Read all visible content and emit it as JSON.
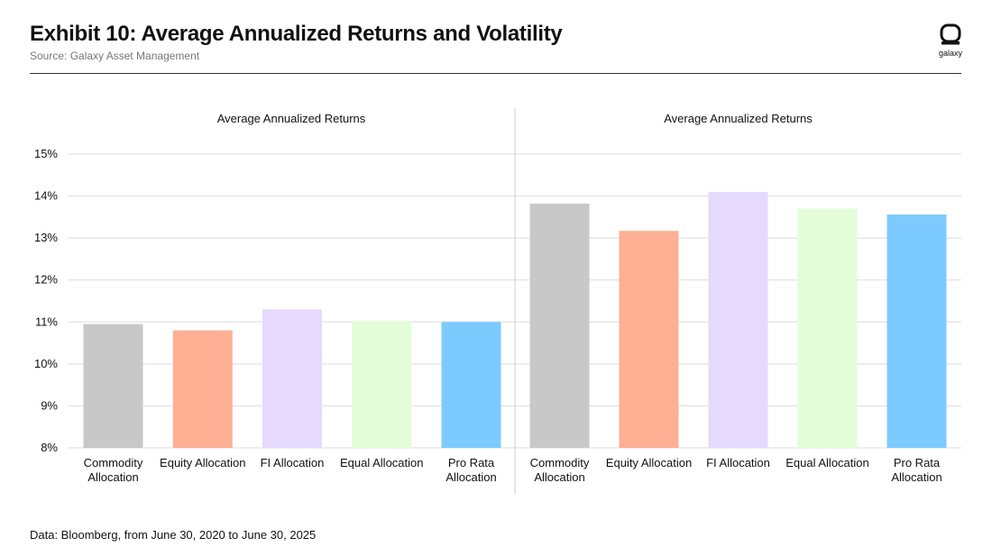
{
  "header": {
    "title": "Exhibit 10: Average Annualized Returns and Volatility",
    "subtitle": "Source: Galaxy Asset Management",
    "logo_text": "galaxy",
    "logo_icon": "galaxy-logo-icon"
  },
  "footnote": "Data: Bloomberg, from June 30, 2020 to June 30, 2025",
  "colors": {
    "grid": "#dddddd",
    "divider": "#cccccc",
    "text": "#111111"
  },
  "chart_data": [
    {
      "type": "bar",
      "title": "Average Annualized Returns",
      "categories": [
        "Commodity Allocation",
        "Equity Allocation",
        "FI Allocation",
        "Equal Allocation",
        "Pro Rata Allocation"
      ],
      "category_lines": [
        [
          "Commodity",
          "Allocation"
        ],
        [
          "Equity Allocation"
        ],
        [
          "FI Allocation"
        ],
        [
          "Equal Allocation"
        ],
        [
          "Pro Rata",
          "Allocation"
        ]
      ],
      "values": [
        10.95,
        10.8,
        11.3,
        11.02,
        11.0
      ],
      "colors": [
        "#c8c8c8",
        "#fdaf93",
        "#e5dafd",
        "#e2fdd8",
        "#7dcbfe"
      ],
      "ylim": [
        8,
        15
      ],
      "yticks": [
        "8%",
        "9%",
        "10%",
        "11%",
        "12%",
        "13%",
        "14%",
        "15%"
      ],
      "grid": true,
      "legend": "none"
    },
    {
      "type": "bar",
      "title": "Average Annualized Returns",
      "categories": [
        "Commodity Allocation",
        "Equity Allocation",
        "FI Allocation",
        "Equal Allocation",
        "Pro Rata Allocation"
      ],
      "category_lines": [
        [
          "Commodity",
          "Allocation"
        ],
        [
          "Equity Allocation"
        ],
        [
          "FI Allocation"
        ],
        [
          "Equal Allocation"
        ],
        [
          "Pro Rata",
          "Allocation"
        ]
      ],
      "values": [
        13.82,
        13.17,
        14.1,
        13.7,
        13.56
      ],
      "colors": [
        "#c8c8c8",
        "#fdaf93",
        "#e5dafd",
        "#e2fdd8",
        "#7dcbfe"
      ],
      "ylim": [
        8,
        15
      ],
      "grid": true,
      "legend": "none"
    }
  ]
}
